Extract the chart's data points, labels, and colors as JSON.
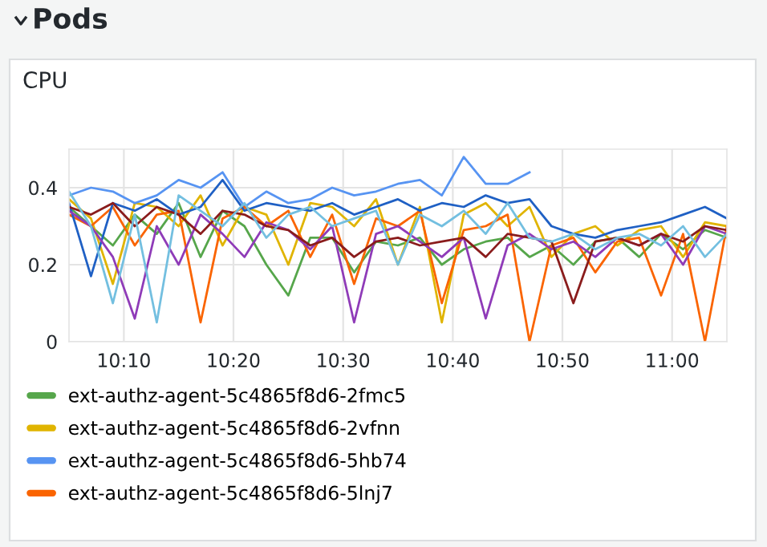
{
  "chart_data": {
    "type": "line",
    "title": "CPU",
    "annotations": [
      "Pods"
    ],
    "x": [
      10.0833,
      10.1167,
      10.15,
      10.1833,
      10.2167,
      10.25,
      10.2833,
      10.3167,
      10.35,
      10.3833,
      10.4167,
      10.45,
      10.4833,
      10.5167,
      10.55,
      10.5833,
      10.6167,
      10.65,
      10.6833,
      10.7167,
      10.75,
      10.7833,
      10.8167,
      10.85,
      10.8833,
      10.9167,
      10.95,
      10.9833,
      11.0167,
      11.05,
      11.0833
    ],
    "series": [
      {
        "name": "ext-authz-agent-5c4865f8d6-2fmc5",
        "color": "#56a64b",
        "values": [
          0.35,
          0.3,
          0.25,
          0.33,
          0.28,
          0.36,
          0.22,
          0.34,
          0.3,
          0.2,
          0.12,
          0.27,
          0.27,
          0.18,
          0.26,
          0.25,
          0.27,
          0.2,
          0.24,
          0.26,
          0.27,
          0.22,
          0.25,
          0.2,
          0.26,
          0.27,
          0.22,
          0.28,
          0.24,
          0.29,
          0.27
        ]
      },
      {
        "name": "ext-authz-agent-5c4865f8d6-2vfnn",
        "color": "#e0b400",
        "values": [
          0.37,
          0.32,
          0.15,
          0.36,
          0.35,
          0.3,
          0.38,
          0.25,
          0.35,
          0.33,
          0.2,
          0.36,
          0.35,
          0.3,
          0.37,
          0.2,
          0.35,
          0.05,
          0.33,
          0.36,
          0.3,
          0.35,
          0.22,
          0.28,
          0.3,
          0.25,
          0.29,
          0.3,
          0.22,
          0.31,
          0.3
        ]
      },
      {
        "name": "ext-authz-agent-5c4865f8d6-5hb74",
        "color": "#5794f2",
        "values": [
          0.38,
          0.4,
          0.39,
          0.36,
          0.38,
          0.42,
          0.4,
          0.44,
          0.35,
          0.39,
          0.36,
          0.37,
          0.4,
          0.38,
          0.39,
          0.41,
          0.42,
          0.38,
          0.48,
          0.41,
          0.41,
          0.44,
          null,
          null,
          null,
          null,
          null,
          null,
          null,
          null,
          null
        ]
      },
      {
        "name": "ext-authz-agent-5c4865f8d6-5lnj7",
        "color": "#fa6400",
        "values": [
          0.33,
          0.3,
          0.35,
          0.25,
          0.33,
          0.34,
          0.05,
          0.32,
          0.35,
          0.3,
          0.34,
          0.22,
          0.33,
          0.15,
          0.32,
          0.3,
          0.34,
          0.1,
          0.29,
          0.3,
          0.33,
          0.0,
          0.25,
          0.27,
          0.18,
          0.26,
          0.27,
          0.12,
          0.28,
          0.0,
          0.3
        ]
      },
      {
        "color": "#1f60c4",
        "values": [
          0.36,
          0.17,
          0.36,
          0.34,
          0.37,
          0.33,
          0.35,
          0.42,
          0.34,
          0.36,
          0.35,
          0.34,
          0.36,
          0.33,
          0.35,
          0.37,
          0.34,
          0.36,
          0.35,
          0.38,
          0.36,
          0.37,
          0.3,
          0.28,
          0.27,
          0.29,
          0.3,
          0.31,
          0.33,
          0.35,
          0.32
        ]
      },
      {
        "color": "#8f3bb8",
        "values": [
          0.34,
          0.3,
          0.22,
          0.06,
          0.3,
          0.2,
          0.33,
          0.28,
          0.22,
          0.31,
          0.29,
          0.24,
          0.3,
          0.05,
          0.28,
          0.3,
          0.26,
          0.22,
          0.27,
          0.06,
          0.25,
          0.28,
          0.24,
          0.26,
          0.22,
          0.27,
          0.25,
          0.28,
          0.2,
          0.3,
          0.28
        ]
      },
      {
        "color": "#8a1c1c",
        "values": [
          0.35,
          0.33,
          0.36,
          0.3,
          0.35,
          0.33,
          0.28,
          0.34,
          0.33,
          0.3,
          0.29,
          0.25,
          0.27,
          0.22,
          0.26,
          0.27,
          0.25,
          0.26,
          0.27,
          0.22,
          0.28,
          0.27,
          0.26,
          0.1,
          0.26,
          0.27,
          0.25,
          0.28,
          0.26,
          0.3,
          0.29
        ]
      },
      {
        "color": "#73bfe0",
        "values": [
          0.39,
          0.3,
          0.1,
          0.33,
          0.05,
          0.38,
          0.34,
          0.3,
          0.36,
          0.27,
          0.33,
          0.35,
          0.3,
          0.32,
          0.34,
          0.2,
          0.33,
          0.3,
          0.34,
          0.28,
          0.36,
          0.27,
          0.26,
          0.28,
          0.24,
          0.27,
          0.28,
          0.25,
          0.3,
          0.22,
          0.28
        ]
      }
    ],
    "xlim": [
      10.0833,
      11.0833
    ],
    "xticks": [
      {
        "value": 10.1667,
        "label": "10:10"
      },
      {
        "value": 10.3333,
        "label": "10:20"
      },
      {
        "value": 10.5,
        "label": "10:30"
      },
      {
        "value": 10.6667,
        "label": "10:40"
      },
      {
        "value": 10.8333,
        "label": "10:50"
      },
      {
        "value": 11.0,
        "label": "11:00"
      }
    ],
    "ylim": [
      0,
      0.5
    ],
    "yticks": [
      0,
      0.2,
      0.4
    ],
    "grid": true,
    "legend": "bottom",
    "marker": "none",
    "line_style": "solid"
  }
}
